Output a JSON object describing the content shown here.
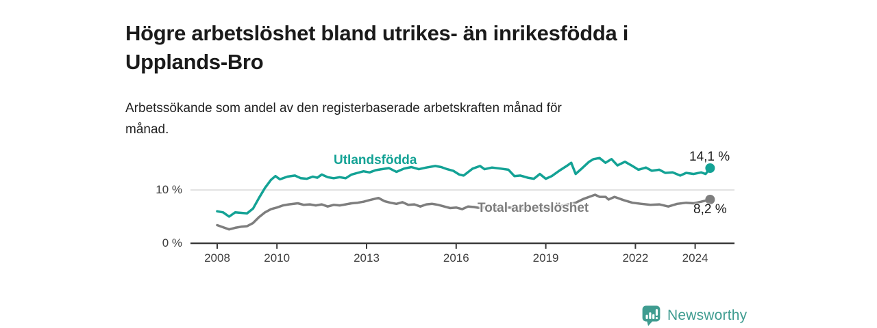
{
  "header": {
    "title": "Högre arbetslöshet bland utrikes- än inrikesfödda i Upplands-Bro",
    "subtitle": "Arbetssökande som andel av den registerbaserade arbetskraften månad för månad."
  },
  "footer": {
    "brand": "Newsworthy",
    "brand_color": "#3f9c90",
    "logo_icon": "bar-chart-speech-bubble"
  },
  "chart_data": {
    "type": "line",
    "title": "Högre arbetslöshet bland utrikes- än inrikesfödda i Upplands-Bro",
    "subtitle": "Arbetssökande som andel av den registerbaserade arbetskraften månad för månad.",
    "xlabel": "",
    "ylabel": "",
    "x_ticks": [
      2008,
      2010,
      2013,
      2016,
      2019,
      2022,
      2024
    ],
    "y_ticks": [
      {
        "value": 0,
        "label": "0 %"
      },
      {
        "value": 10,
        "label": "10 %"
      }
    ],
    "x_range": [
      2007.1,
      2025.3
    ],
    "y_range": [
      0,
      17.4
    ],
    "grid": "single horizontal gridline at 10 %",
    "legend_position": "inline labels on lines",
    "colors": {
      "accent_teal": "#13a295",
      "neutral_gray": "#7e7e7e",
      "axis": "#3a3a3a",
      "gridline": "#d9d9d9"
    },
    "series": [
      {
        "name": "Utlandsfödda",
        "color": "#13a295",
        "end_label": "14,1 %",
        "end_value": 14.1,
        "points": [
          [
            2008.0,
            6.0
          ],
          [
            2008.2,
            5.8
          ],
          [
            2008.4,
            5.0
          ],
          [
            2008.6,
            5.8
          ],
          [
            2008.8,
            5.7
          ],
          [
            2009.0,
            5.6
          ],
          [
            2009.2,
            6.5
          ],
          [
            2009.4,
            8.5
          ],
          [
            2009.6,
            10.4
          ],
          [
            2009.8,
            11.9
          ],
          [
            2009.95,
            12.6
          ],
          [
            2010.1,
            12.0
          ],
          [
            2010.35,
            12.5
          ],
          [
            2010.6,
            12.7
          ],
          [
            2010.8,
            12.2
          ],
          [
            2011.0,
            12.1
          ],
          [
            2011.2,
            12.5
          ],
          [
            2011.35,
            12.3
          ],
          [
            2011.5,
            12.9
          ],
          [
            2011.7,
            12.4
          ],
          [
            2011.9,
            12.2
          ],
          [
            2012.1,
            12.4
          ],
          [
            2012.3,
            12.2
          ],
          [
            2012.5,
            12.9
          ],
          [
            2012.7,
            13.2
          ],
          [
            2012.9,
            13.5
          ],
          [
            2013.1,
            13.3
          ],
          [
            2013.3,
            13.7
          ],
          [
            2013.5,
            13.9
          ],
          [
            2013.75,
            14.1
          ],
          [
            2014.0,
            13.4
          ],
          [
            2014.25,
            14.0
          ],
          [
            2014.5,
            14.3
          ],
          [
            2014.75,
            13.9
          ],
          [
            2015.0,
            14.2
          ],
          [
            2015.3,
            14.5
          ],
          [
            2015.5,
            14.3
          ],
          [
            2015.7,
            13.9
          ],
          [
            2015.9,
            13.6
          ],
          [
            2016.1,
            12.9
          ],
          [
            2016.25,
            12.7
          ],
          [
            2016.55,
            14.0
          ],
          [
            2016.8,
            14.5
          ],
          [
            2016.95,
            13.9
          ],
          [
            2017.2,
            14.2
          ],
          [
            2017.5,
            14.0
          ],
          [
            2017.75,
            13.8
          ],
          [
            2017.95,
            12.6
          ],
          [
            2018.15,
            12.7
          ],
          [
            2018.4,
            12.3
          ],
          [
            2018.6,
            12.1
          ],
          [
            2018.8,
            13.0
          ],
          [
            2019.0,
            12.1
          ],
          [
            2019.2,
            12.6
          ],
          [
            2019.45,
            13.6
          ],
          [
            2019.7,
            14.5
          ],
          [
            2019.85,
            15.1
          ],
          [
            2020.0,
            13.0
          ],
          [
            2020.2,
            14.0
          ],
          [
            2020.45,
            15.3
          ],
          [
            2020.6,
            15.8
          ],
          [
            2020.8,
            16.0
          ],
          [
            2021.0,
            15.1
          ],
          [
            2021.2,
            15.8
          ],
          [
            2021.4,
            14.6
          ],
          [
            2021.65,
            15.3
          ],
          [
            2021.9,
            14.5
          ],
          [
            2022.1,
            13.8
          ],
          [
            2022.35,
            14.2
          ],
          [
            2022.55,
            13.6
          ],
          [
            2022.8,
            13.8
          ],
          [
            2023.0,
            13.2
          ],
          [
            2023.25,
            13.3
          ],
          [
            2023.5,
            12.7
          ],
          [
            2023.7,
            13.2
          ],
          [
            2023.95,
            13.0
          ],
          [
            2024.2,
            13.3
          ],
          [
            2024.35,
            13.0
          ],
          [
            2024.5,
            14.1
          ]
        ]
      },
      {
        "name": "Total arbetslöshet",
        "color": "#7e7e7e",
        "end_label": "8,2 %",
        "end_value": 8.2,
        "points": [
          [
            2008.0,
            3.4
          ],
          [
            2008.2,
            3.0
          ],
          [
            2008.4,
            2.6
          ],
          [
            2008.6,
            2.9
          ],
          [
            2008.8,
            3.1
          ],
          [
            2009.0,
            3.2
          ],
          [
            2009.2,
            3.8
          ],
          [
            2009.4,
            4.9
          ],
          [
            2009.6,
            5.8
          ],
          [
            2009.8,
            6.4
          ],
          [
            2010.0,
            6.7
          ],
          [
            2010.2,
            7.1
          ],
          [
            2010.4,
            7.3
          ],
          [
            2010.7,
            7.5
          ],
          [
            2010.9,
            7.2
          ],
          [
            2011.1,
            7.3
          ],
          [
            2011.3,
            7.1
          ],
          [
            2011.5,
            7.3
          ],
          [
            2011.7,
            6.9
          ],
          [
            2011.9,
            7.2
          ],
          [
            2012.1,
            7.1
          ],
          [
            2012.3,
            7.3
          ],
          [
            2012.5,
            7.5
          ],
          [
            2012.7,
            7.6
          ],
          [
            2012.9,
            7.8
          ],
          [
            2013.1,
            8.1
          ],
          [
            2013.4,
            8.5
          ],
          [
            2013.6,
            7.9
          ],
          [
            2013.8,
            7.6
          ],
          [
            2014.0,
            7.4
          ],
          [
            2014.2,
            7.7
          ],
          [
            2014.4,
            7.2
          ],
          [
            2014.6,
            7.3
          ],
          [
            2014.8,
            6.9
          ],
          [
            2015.0,
            7.3
          ],
          [
            2015.2,
            7.4
          ],
          [
            2015.4,
            7.2
          ],
          [
            2015.6,
            6.9
          ],
          [
            2015.8,
            6.6
          ],
          [
            2016.0,
            6.7
          ],
          [
            2016.2,
            6.4
          ],
          [
            2016.4,
            6.9
          ],
          [
            2016.6,
            6.8
          ],
          [
            2016.8,
            6.6
          ],
          [
            2017.0,
            6.8
          ],
          [
            2017.25,
            6.7
          ],
          [
            2017.5,
            6.5
          ],
          [
            2017.75,
            6.7
          ],
          [
            2018.0,
            6.6
          ],
          [
            2018.25,
            6.5
          ],
          [
            2018.5,
            6.6
          ],
          [
            2018.75,
            6.5
          ],
          [
            2019.0,
            6.6
          ],
          [
            2019.25,
            6.8
          ],
          [
            2019.5,
            7.0
          ],
          [
            2019.75,
            7.3
          ],
          [
            2020.0,
            7.6
          ],
          [
            2020.25,
            8.3
          ],
          [
            2020.5,
            8.8
          ],
          [
            2020.65,
            9.1
          ],
          [
            2020.8,
            8.7
          ],
          [
            2021.0,
            8.7
          ],
          [
            2021.1,
            8.2
          ],
          [
            2021.3,
            8.7
          ],
          [
            2021.6,
            8.1
          ],
          [
            2021.9,
            7.6
          ],
          [
            2022.2,
            7.4
          ],
          [
            2022.5,
            7.2
          ],
          [
            2022.8,
            7.3
          ],
          [
            2023.1,
            6.9
          ],
          [
            2023.4,
            7.4
          ],
          [
            2023.7,
            7.6
          ],
          [
            2023.95,
            7.5
          ],
          [
            2024.2,
            7.8
          ],
          [
            2024.5,
            8.2
          ]
        ]
      }
    ]
  }
}
